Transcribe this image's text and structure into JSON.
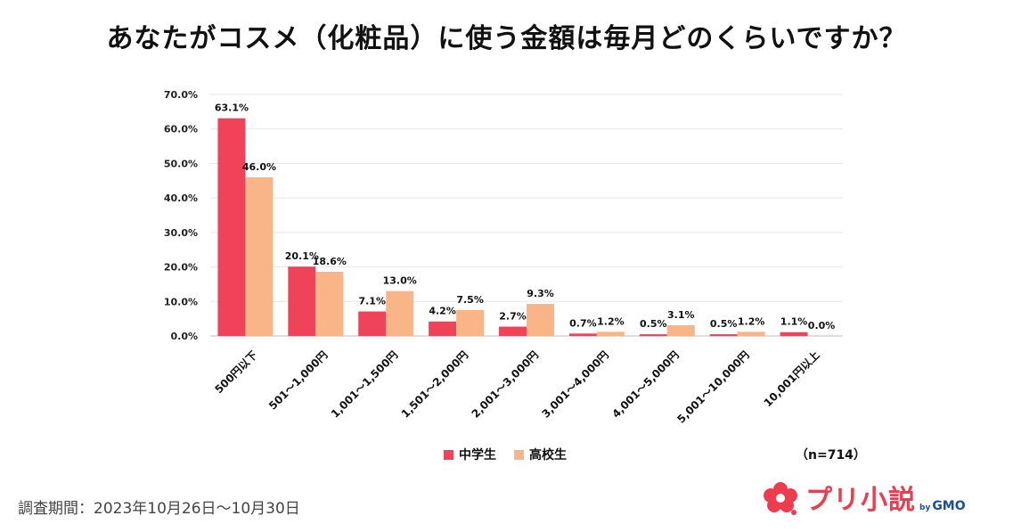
{
  "title": "あなたがコスメ（化粧品）に使う金額は毎月どのくらいですか？",
  "sample_size": "（n=714）",
  "period": "調査期間：2023年10月26日〜10月30日",
  "logo": {
    "text": "プリ小説",
    "by": "by",
    "brand": "GMO"
  },
  "colors": {
    "series1": "#f04258",
    "series2": "#f9b587",
    "grid": "#e6e6e6"
  },
  "chart_data": {
    "type": "bar",
    "categories": [
      "500円以下",
      "501〜1,000円",
      "1,001〜1,500円",
      "1,501〜2,000円",
      "2,001〜3,000円",
      "3,001〜4,000円",
      "4,001〜5,000円",
      "5,001〜10,000円",
      "10,001円以上"
    ],
    "series": [
      {
        "name": "中学生",
        "values": [
          63.1,
          20.1,
          7.1,
          4.2,
          2.7,
          0.7,
          0.5,
          0.5,
          1.1
        ]
      },
      {
        "name": "高校生",
        "values": [
          46.0,
          18.6,
          13.0,
          7.5,
          9.3,
          1.2,
          3.1,
          1.2,
          0.0
        ]
      }
    ],
    "y_ticks": [
      "0.0%",
      "10.0%",
      "20.0%",
      "30.0%",
      "40.0%",
      "50.0%",
      "60.0%",
      "70.0%"
    ],
    "ylim": [
      0,
      70
    ],
    "ylabel": "",
    "xlabel": "",
    "legend_position": "bottom",
    "grid": true
  }
}
